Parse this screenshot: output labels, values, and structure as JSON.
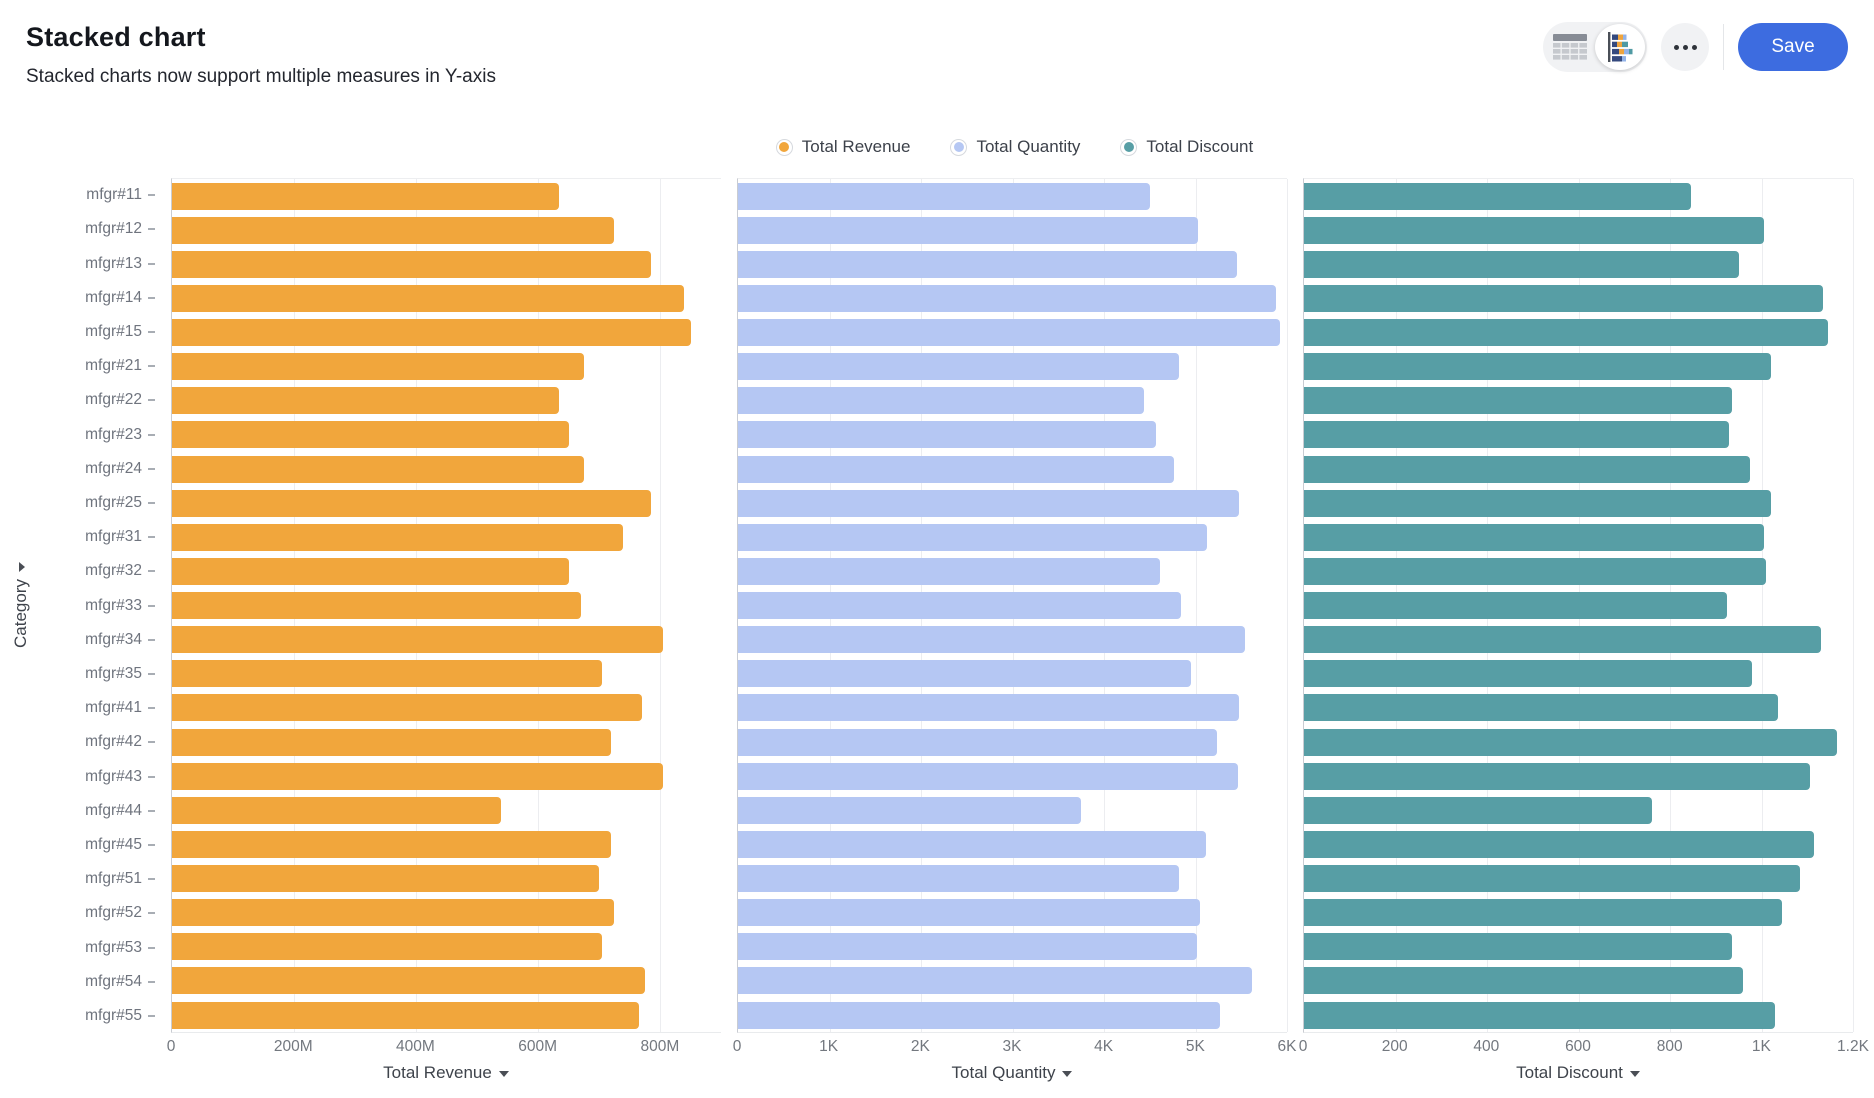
{
  "header": {
    "title": "Stacked chart",
    "subtitle": "Stacked charts now support multiple measures in Y-axis",
    "actions": {
      "view_toggle": {
        "options": [
          "table-view",
          "chart-view"
        ],
        "active": "chart-view"
      },
      "more": "more-options",
      "save_label": "Save"
    }
  },
  "colors": {
    "revenue": "#F1A63C",
    "quantity": "#B5C7F3",
    "discount": "#579EA5",
    "save_button": "#3D6CE0",
    "gridline": "#ECEDF0"
  },
  "legend": [
    {
      "label": "Total Revenue",
      "color": "#F1A63C"
    },
    {
      "label": "Total Quantity",
      "color": "#B5C7F3"
    },
    {
      "label": "Total Discount",
      "color": "#579EA5"
    }
  ],
  "y_axis": {
    "title": "Category",
    "sortable": true
  },
  "chart_data": {
    "type": "bar",
    "orientation": "horizontal",
    "grid": true,
    "legend_position": "top",
    "categories": [
      "mfgr#11",
      "mfgr#12",
      "mfgr#13",
      "mfgr#14",
      "mfgr#15",
      "mfgr#21",
      "mfgr#22",
      "mfgr#23",
      "mfgr#24",
      "mfgr#25",
      "mfgr#31",
      "mfgr#32",
      "mfgr#33",
      "mfgr#34",
      "mfgr#35",
      "mfgr#41",
      "mfgr#42",
      "mfgr#43",
      "mfgr#44",
      "mfgr#45",
      "mfgr#51",
      "mfgr#52",
      "mfgr#53",
      "mfgr#54",
      "mfgr#55"
    ],
    "series": [
      {
        "name": "Total Revenue",
        "unit": "M",
        "color": "#F1A63C",
        "axis_max": 900,
        "ticks": [
          {
            "v": 0,
            "label": "0"
          },
          {
            "v": 200,
            "label": "200M"
          },
          {
            "v": 400,
            "label": "400M"
          },
          {
            "v": 600,
            "label": "600M"
          },
          {
            "v": 800,
            "label": "800M"
          }
        ],
        "values": [
          635,
          725,
          785,
          840,
          850,
          675,
          635,
          650,
          675,
          785,
          740,
          650,
          670,
          805,
          705,
          770,
          720,
          805,
          540,
          720,
          700,
          725,
          705,
          775,
          765
        ]
      },
      {
        "name": "Total Quantity",
        "unit": "",
        "color": "#B5C7F3",
        "axis_max": 6000,
        "ticks": [
          {
            "v": 0,
            "label": "0"
          },
          {
            "v": 1000,
            "label": "1K"
          },
          {
            "v": 2000,
            "label": "2K"
          },
          {
            "v": 3000,
            "label": "3K"
          },
          {
            "v": 4000,
            "label": "4K"
          },
          {
            "v": 5000,
            "label": "5K"
          },
          {
            "v": 6000,
            "label": "6K"
          }
        ],
        "values": [
          4500,
          5030,
          5450,
          5880,
          5920,
          4820,
          4440,
          4570,
          4770,
          5470,
          5130,
          4610,
          4840,
          5540,
          4950,
          5470,
          5230,
          5460,
          3750,
          5110,
          4820,
          5050,
          5020,
          5620,
          5270
        ]
      },
      {
        "name": "Total Discount",
        "unit": "",
        "color": "#579EA5",
        "axis_max": 1200,
        "ticks": [
          {
            "v": 0,
            "label": "0"
          },
          {
            "v": 200,
            "label": "200"
          },
          {
            "v": 400,
            "label": "400"
          },
          {
            "v": 600,
            "label": "600"
          },
          {
            "v": 800,
            "label": "800"
          },
          {
            "v": 1000,
            "label": "1K"
          },
          {
            "v": 1200,
            "label": "1.2K"
          }
        ],
        "values": [
          845,
          1005,
          950,
          1135,
          1145,
          1020,
          935,
          930,
          975,
          1020,
          1005,
          1010,
          925,
          1130,
          980,
          1035,
          1165,
          1105,
          760,
          1115,
          1085,
          1045,
          935,
          960,
          1030
        ]
      }
    ]
  }
}
